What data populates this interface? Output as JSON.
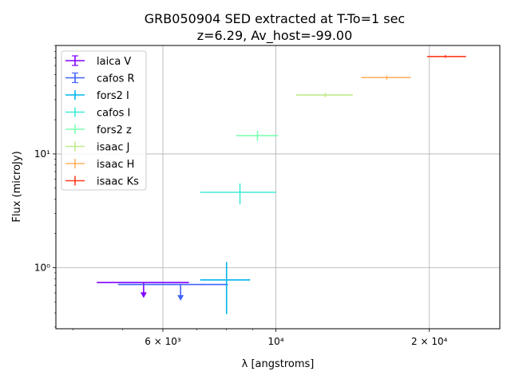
{
  "chart_data": {
    "type": "scatter",
    "title": "GRB050904 SED extracted at T-To=1 sec",
    "subtitle": "z=6.29, Av_host=-99.00",
    "xlabel": "λ [angstroms]",
    "ylabel": "Flux (microJy)",
    "xscale": "log",
    "yscale": "log",
    "xlim": [
      3700,
      27500
    ],
    "ylim": [
      0.29,
      90
    ],
    "grid": true,
    "legend_position": "top-left",
    "x_ticks": [
      {
        "value": 6000,
        "label": "6 × 10³"
      },
      {
        "value": 10000,
        "label": "10⁴"
      },
      {
        "value": 20000,
        "label": "2 × 10⁴"
      }
    ],
    "y_ticks": [
      {
        "value": 1,
        "label": "10⁰"
      },
      {
        "value": 10,
        "label": "10¹"
      }
    ],
    "series": [
      {
        "name": "laica V",
        "color": "#8000ff",
        "x": 5500,
        "xmin": 4450,
        "xmax": 6750,
        "y": 0.74,
        "upper_limit": true,
        "limit_y": 0.55
      },
      {
        "name": "cafos R",
        "color": "#4062fa",
        "x": 6500,
        "xmin": 4900,
        "xmax": 8050,
        "y": 0.71,
        "upper_limit": true,
        "limit_y": 0.52
      },
      {
        "name": "fors2 I",
        "color": "#00b5eb",
        "x": 8000,
        "xmin": 7100,
        "xmax": 8900,
        "y": 0.78,
        "ymin": 0.39,
        "ymax": 1.12
      },
      {
        "name": "cafos I",
        "color": "#40ecd4",
        "x": 8500,
        "xmin": 7100,
        "xmax": 10000,
        "y": 4.6,
        "ymin": 3.6,
        "ymax": 5.5
      },
      {
        "name": "fors2 z",
        "color": "#80ffb4",
        "x": 9200,
        "xmin": 8350,
        "xmax": 10100,
        "y": 14.5,
        "ymin": 13.0,
        "ymax": 16.0
      },
      {
        "name": "isaac J",
        "color": "#c0eb8d",
        "x": 12500,
        "xmin": 10950,
        "xmax": 14150,
        "y": 33,
        "ymin": 31.5,
        "ymax": 34.5
      },
      {
        "name": "isaac H",
        "color": "#ffb360",
        "x": 16500,
        "xmin": 14700,
        "xmax": 18400,
        "y": 47,
        "ymin": 45,
        "ymax": 49
      },
      {
        "name": "isaac Ks",
        "color": "#ff3d1f",
        "x": 21500,
        "xmin": 19800,
        "xmax": 23600,
        "y": 72,
        "ymin": 70,
        "ymax": 74
      }
    ]
  }
}
